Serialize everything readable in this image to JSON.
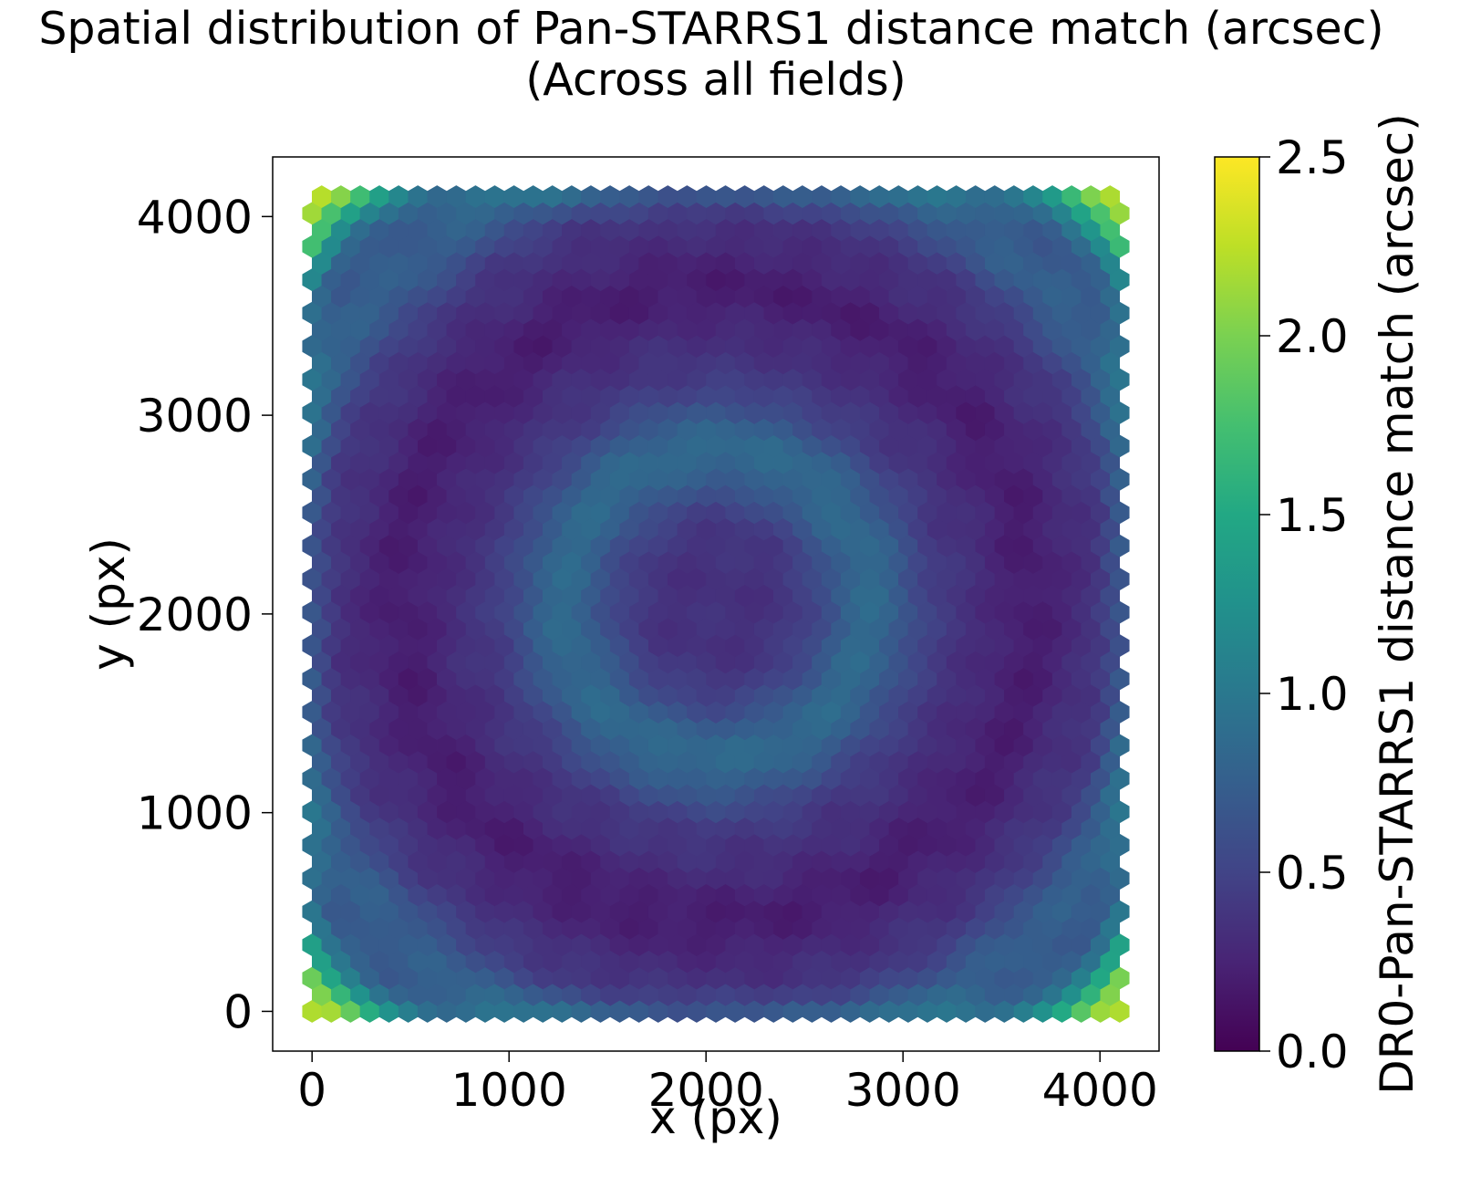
{
  "chart_data": {
    "type": "heatmap",
    "subtype": "hexbin",
    "title": "Spatial distribution of Pan-STARRS1 distance match (arcsec)",
    "subtitle": "(Across all fields)",
    "xlabel": "x (px)",
    "ylabel": "y (px)",
    "xlim": [
      -200,
      4300
    ],
    "ylim": [
      -200,
      4300
    ],
    "data_extent": {
      "x": [
        0,
        4100
      ],
      "y": [
        0,
        4100
      ]
    },
    "x_ticks": [
      0,
      1000,
      2000,
      3000,
      4000
    ],
    "x_tick_labels": [
      "0",
      "1000",
      "2000",
      "3000",
      "4000"
    ],
    "y_ticks": [
      0,
      1000,
      2000,
      3000,
      4000
    ],
    "y_tick_labels": [
      "0",
      "1000",
      "2000",
      "3000",
      "4000"
    ],
    "hex_grid": {
      "gridsize_x": 42
    },
    "colorbar": {
      "label": "DR0-Pan-STARRS1 distance match (arcsec)",
      "colormap": "viridis",
      "vmin": 0.0,
      "vmax": 2.5,
      "ticks": [
        0.0,
        0.5,
        1.0,
        1.5,
        2.0,
        2.5
      ],
      "tick_labels": [
        "0.0",
        "0.5",
        "1.0",
        "1.5",
        "2.0",
        "2.5"
      ]
    },
    "value_field": {
      "description": "approximate distance-match values read from colours",
      "center_value": 0.35,
      "inner_ring_value": 0.85,
      "dark_ring_value": 0.35,
      "outer_ring_value": 0.75,
      "corner_value": 2.0,
      "edge_mid_value": 0.55
    }
  }
}
